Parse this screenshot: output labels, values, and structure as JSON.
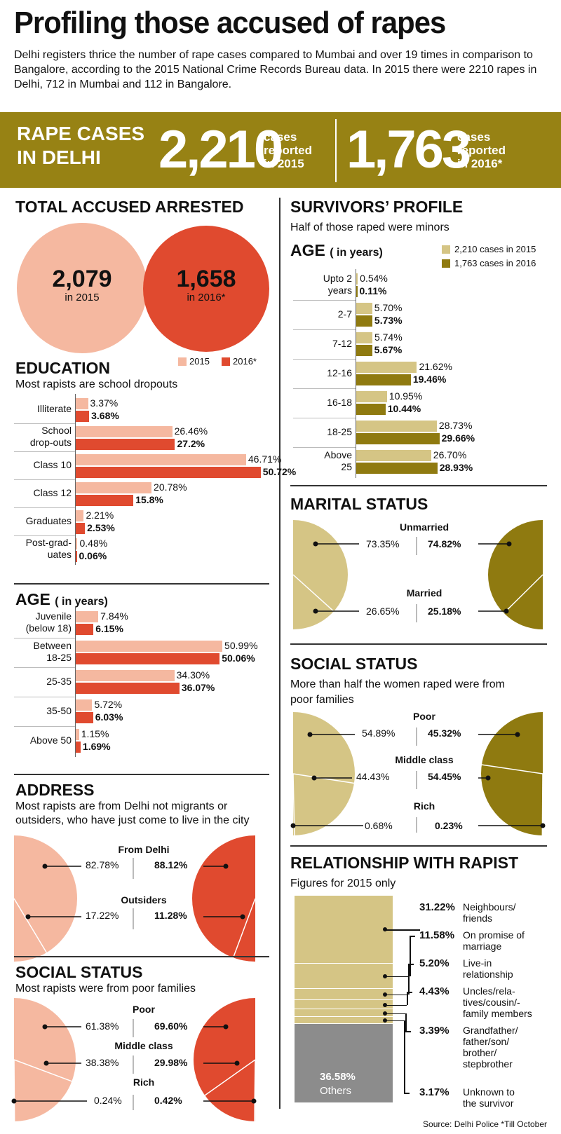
{
  "title": "Profiling those accused of rapes",
  "intro": "Delhi registers thrice the number of rape cases compared to Mumbai and over 19 times in comparison to Bangalore, according to the 2015 National Crime Records Bureau data. In 2015 there were 2210 rapes in Delhi, 712 in Mumbai and 112 in Bangalore.",
  "band": {
    "label_line1": "RAPE CASES",
    "label_line2": "IN DELHI",
    "value_2015": "2,210",
    "text_2015_l1": "cases",
    "text_2015_l2": "reported",
    "text_2015_l3": "in 2015",
    "value_2016": "1,763",
    "text_2016_l1": "cases",
    "text_2016_l2": "reported",
    "text_2016_l3": "in 2016*"
  },
  "colors": {
    "gold": "#978214",
    "gold_light": "#d5c585",
    "gold_dark": "#8f7a10",
    "salmon": "#f5b8a0",
    "red": "#e04a2f",
    "grey": "#8c8c8c"
  },
  "accused": {
    "heading": "TOTAL ACCUSED ARRESTED",
    "v2015": "2,079",
    "l2015": "in 2015",
    "v2016": "1,658",
    "l2016": "in 2016*",
    "legend_2015": "2015",
    "legend_2016": "2016*"
  },
  "education": {
    "heading": "EDUCATION",
    "sub": "Most rapists are school dropouts"
  },
  "accused_age": {
    "heading": "AGE",
    "unit": "( in years)"
  },
  "address": {
    "heading": "ADDRESS",
    "sub_l1": "Most rapists are from Delhi not migrants or",
    "sub_l2": "outsiders, who have just come to live in the city",
    "cat1": "From Delhi",
    "cat1_2015": "82.78%",
    "cat1_2016": "88.12%",
    "cat2": "Outsiders",
    "cat2_2015": "17.22%",
    "cat2_2016": "11.28%"
  },
  "accused_social": {
    "heading": "SOCIAL STATUS",
    "sub": "Most rapists were from poor families",
    "cat1": "Poor",
    "cat1_2015": "61.38%",
    "cat1_2016": "69.60%",
    "cat2": "Middle class",
    "cat2_2015": "38.38%",
    "cat2_2016": "29.98%",
    "cat3": "Rich",
    "cat3_2015": "0.24%",
    "cat3_2016": "0.42%"
  },
  "survivors": {
    "heading": "SURVIVORS’ PROFILE",
    "sub": "Half of those raped were minors",
    "age_heading": "AGE",
    "age_unit": "( in years)",
    "legend_2015": "2,210 cases in 2015",
    "legend_2016": "1,763 cases in 2016"
  },
  "marital": {
    "heading": "MARITAL STATUS",
    "cat1": "Unmarried",
    "cat1_2015": "73.35%",
    "cat1_2016": "74.82%",
    "cat2": "Married",
    "cat2_2015": "26.65%",
    "cat2_2016": "25.18%"
  },
  "survivor_social": {
    "heading": "SOCIAL STATUS",
    "sub_l1": "More than half the women raped were from",
    "sub_l2": "poor families",
    "cat1": "Poor",
    "cat1_2015": "54.89%",
    "cat1_2016": "45.32%",
    "cat2": "Middle class",
    "cat2_2015": "44.43%",
    "cat2_2016": "54.45%",
    "cat3": "Rich",
    "cat3_2015": "0.68%",
    "cat3_2016": "0.23%"
  },
  "relationship": {
    "heading": "RELATIONSHIP WITH RAPIST",
    "sub": "Figures for 2015 only",
    "others_pct": "36.58%",
    "others_label": "Others"
  },
  "source": "Source: Delhi Police *Till October",
  "chart_data": [
    {
      "type": "bar",
      "title": "EDUCATION",
      "categories": [
        "Illiterate",
        "School drop-outs",
        "Class 10",
        "Class 12",
        "Graduates",
        "Post-grad-uates"
      ],
      "category_lines": [
        [
          "Illiterate"
        ],
        [
          "School",
          "drop-outs"
        ],
        [
          "Class 10"
        ],
        [
          "Class 12"
        ],
        [
          "Graduates"
        ],
        [
          "Post-grad-",
          "uates"
        ]
      ],
      "series": [
        {
          "name": "2015",
          "values": [
            3.37,
            26.46,
            46.71,
            20.78,
            2.21,
            0.48
          ],
          "labels": [
            "3.37%",
            "26.46%",
            "46.71%",
            "20.78%",
            "2.21%",
            "0.48%"
          ]
        },
        {
          "name": "2016*",
          "values": [
            3.68,
            27.2,
            50.72,
            15.8,
            2.53,
            0.06
          ],
          "labels": [
            "3.68%",
            "27.2%",
            "50.72%",
            "15.8%",
            "2.53%",
            "0.06%"
          ]
        }
      ]
    },
    {
      "type": "bar",
      "title": "AGE",
      "categories": [
        "Juvenile (below 18)",
        "Between 18-25",
        "25-35",
        "35-50",
        "Above 50"
      ],
      "category_lines": [
        [
          "Juvenile",
          "(below 18)"
        ],
        [
          "Between",
          "18-25"
        ],
        [
          "25-35"
        ],
        [
          "35-50"
        ],
        [
          "Above 50"
        ]
      ],
      "series": [
        {
          "name": "2015",
          "values": [
            7.84,
            50.99,
            34.3,
            5.72,
            1.15
          ],
          "labels": [
            "7.84%",
            "50.99%",
            "34.30%",
            "5.72%",
            "1.15%"
          ]
        },
        {
          "name": "2016*",
          "values": [
            6.15,
            50.06,
            36.07,
            6.03,
            1.69
          ],
          "labels": [
            "6.15%",
            "50.06%",
            "36.07%",
            "6.03%",
            "1.69%"
          ]
        }
      ]
    },
    {
      "type": "bar",
      "title": "AGE",
      "categories": [
        "Upto 2 years",
        "2-7",
        "7-12",
        "12-16",
        "16-18",
        "18-25",
        "Above 25"
      ],
      "category_lines": [
        [
          "Upto 2",
          "years"
        ],
        [
          "2-7"
        ],
        [
          "7-12"
        ],
        [
          "12-16"
        ],
        [
          "16-18"
        ],
        [
          "18-25"
        ],
        [
          "Above",
          "25"
        ]
      ],
      "series": [
        {
          "name": "2,210 cases in 2015",
          "values": [
            0.54,
            5.7,
            5.74,
            21.62,
            10.95,
            28.73,
            26.7
          ],
          "labels": [
            "0.54%",
            "5.70%",
            "5.74%",
            "21.62%",
            "10.95%",
            "28.73%",
            "26.70%"
          ]
        },
        {
          "name": "1,763 cases in 2016",
          "values": [
            0.11,
            5.73,
            5.67,
            19.46,
            10.44,
            29.66,
            28.93
          ],
          "labels": [
            "0.11%",
            "5.73%",
            "5.67%",
            "19.46%",
            "10.44%",
            "29.66%",
            "28.93%"
          ]
        }
      ]
    },
    {
      "type": "pie",
      "title": "ADDRESS",
      "categories": [
        "From Delhi",
        "Outsiders"
      ],
      "series": [
        {
          "name": "2015",
          "values": [
            82.78,
            17.22
          ]
        },
        {
          "name": "2016*",
          "values": [
            88.12,
            11.28
          ]
        }
      ]
    },
    {
      "type": "pie",
      "title": "SOCIAL STATUS",
      "categories": [
        "Poor",
        "Middle class",
        "Rich"
      ],
      "series": [
        {
          "name": "2015",
          "values": [
            61.38,
            38.38,
            0.24
          ]
        },
        {
          "name": "2016*",
          "values": [
            69.6,
            29.98,
            0.42
          ]
        }
      ]
    },
    {
      "type": "pie",
      "title": "MARITAL STATUS",
      "categories": [
        "Unmarried",
        "Married"
      ],
      "series": [
        {
          "name": "2,210 cases in 2015",
          "values": [
            73.35,
            26.65
          ]
        },
        {
          "name": "1,763 cases in 2016",
          "values": [
            74.82,
            25.18
          ]
        }
      ]
    },
    {
      "type": "pie",
      "title": "SOCIAL STATUS",
      "categories": [
        "Poor",
        "Middle class",
        "Rich"
      ],
      "series": [
        {
          "name": "2,210 cases in 2015",
          "values": [
            54.89,
            44.43,
            0.68
          ]
        },
        {
          "name": "1,763 cases in 2016",
          "values": [
            45.32,
            54.45,
            0.23
          ]
        }
      ]
    },
    {
      "type": "bar",
      "title": "RELATIONSHIP WITH RAPIST",
      "categories": [
        "Neighbours/ friends",
        "On promise of marriage",
        "Live-in relationship",
        "Uncles/rela-tives/cousin/-family members",
        "Grandfather/ father/son/ brother/ stepbrother",
        "Unknown to the survivor",
        "Others"
      ],
      "category_lines": [
        [
          "Neighbours/",
          "friends"
        ],
        [
          "On promise of",
          "marriage"
        ],
        [
          "Live-in",
          "relationship"
        ],
        [
          "Uncles/rela-",
          "tives/cousin/-",
          "family members"
        ],
        [
          "Grandfather/",
          "father/son/",
          "brother/",
          "stepbrother"
        ],
        [
          "Unknown to",
          "the survivor"
        ],
        [
          "Others"
        ]
      ],
      "values": [
        31.22,
        11.58,
        5.2,
        4.43,
        3.39,
        3.17,
        36.58
      ],
      "labels": [
        "31.22%",
        "11.58%",
        "5.20%",
        "4.43%",
        "3.39%",
        "3.17%",
        "36.58%"
      ]
    }
  ]
}
